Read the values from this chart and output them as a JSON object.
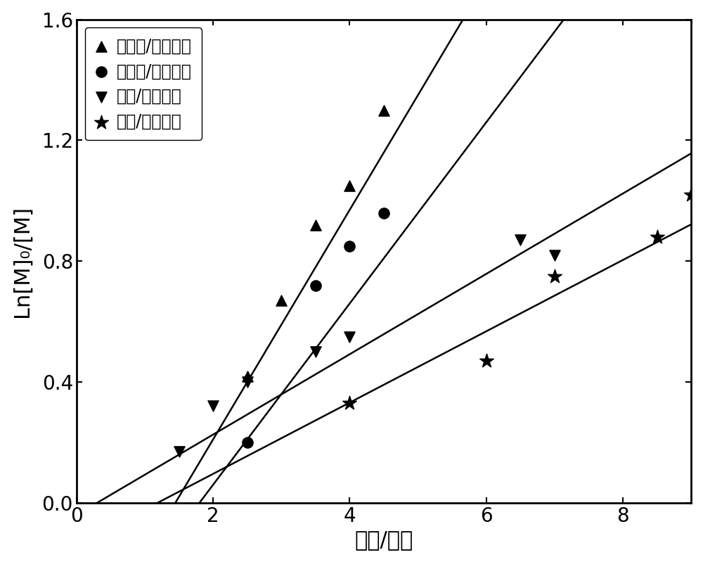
{
  "title": "",
  "xlabel": "时间/小时",
  "ylabel": "Ln[M]₀/[M]",
  "xlim": [
    0,
    9
  ],
  "ylim": [
    0.0,
    1.6
  ],
  "xticks": [
    0,
    2,
    4,
    6,
    8
  ],
  "yticks": [
    0.0,
    0.4,
    0.8,
    1.2,
    1.6
  ],
  "series": [
    {
      "label": "乙酰胺/硫氰酸铵",
      "marker": "^",
      "x": [
        2.5,
        3.0,
        3.5,
        4.0,
        4.5
      ],
      "y": [
        0.42,
        0.67,
        0.92,
        1.05,
        1.3
      ],
      "fit_slope": 0.38,
      "fit_intercept": -0.55
    },
    {
      "label": "乙酰胺/硫氰酸钒",
      "marker": "o",
      "x": [
        2.5,
        3.5,
        4.0,
        4.5
      ],
      "y": [
        0.2,
        0.72,
        0.85,
        0.96
      ],
      "fit_slope": 0.3,
      "fit_intercept": -0.54
    },
    {
      "label": "尿素/硫氰酸铵",
      "marker": "v",
      "x": [
        1.5,
        2.0,
        2.5,
        3.5,
        4.0,
        6.5,
        7.0
      ],
      "y": [
        0.17,
        0.32,
        0.4,
        0.5,
        0.55,
        0.87,
        0.82
      ],
      "fit_slope": 0.133,
      "fit_intercept": -0.04
    },
    {
      "label": "尿素/硫氰酸钒",
      "marker": "*",
      "x": [
        4.0,
        6.0,
        7.0,
        8.5,
        9.0
      ],
      "y": [
        0.33,
        0.47,
        0.75,
        0.88,
        1.02
      ],
      "fit_slope": 0.118,
      "fit_intercept": -0.14
    }
  ],
  "marker_size": 120,
  "star_size": 220,
  "line_color": "black",
  "marker_color": "black",
  "line_width": 1.8,
  "font_size_label": 22,
  "font_size_tick": 20,
  "font_size_legend": 17,
  "background_color": "white"
}
